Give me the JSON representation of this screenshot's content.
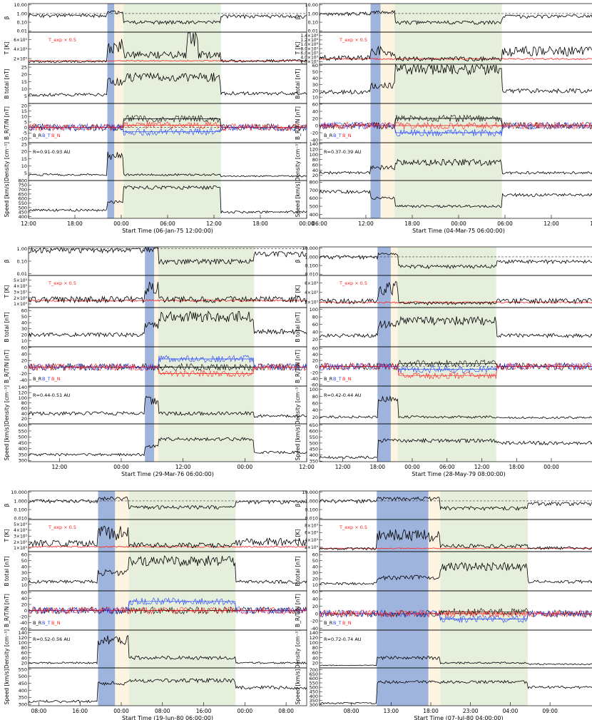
{
  "colors": {
    "sheath_blue": "#9fb4dd",
    "cream": "#fdf5e2",
    "mc_green": "#e6efdc",
    "br_black": "#000000",
    "bt_blue": "#1f3fff",
    "bn_red": "#ff1f1f",
    "texp_red": "#ff1f1f",
    "dash": "#333333"
  },
  "panel_labels": {
    "beta": "β",
    "temp": "T [K]",
    "btotal": "B total [nT]",
    "brtn": "B_R/T/N [nT]",
    "density": "Density [cm⁻³]",
    "speed": "Speed [km/s]"
  },
  "texp_label": "T_exp × 0.5",
  "legend": {
    "br": "B_R",
    "bt": "B_T",
    "bn": "B_N"
  },
  "chart_data": [
    {
      "type": "line",
      "start_label": "Start Time (06-Jan-75 12:00:00)",
      "xlim_hours": [
        0,
        36
      ],
      "xticks": [
        {
          "h": 0,
          "label": "12:00"
        },
        {
          "h": 6,
          "label": "18:00"
        },
        {
          "h": 12,
          "label": "00:00"
        },
        {
          "h": 18,
          "label": "06:00"
        },
        {
          "h": 24,
          "label": "12:00"
        },
        {
          "h": 30,
          "label": "18:00"
        },
        {
          "h": 36,
          "label": "00:00"
        }
      ],
      "radius_label": "R=0.91-0.93 AU",
      "regions_hours": {
        "sheath": [
          10.2,
          11.1
        ],
        "cream": [
          11.1,
          12.3
        ],
        "cloud": [
          12.3,
          24.9
        ]
      },
      "beta": {
        "ticks": [
          "10.00",
          "1.00",
          "0.10",
          "0.01"
        ],
        "pre": 0.6,
        "sheath": 1.5,
        "cloud": 0.1,
        "post": 0.5
      },
      "temp": {
        "ticks": [
          "2×10⁵",
          "4×10⁵",
          "6×10⁵"
        ],
        "max": 7.5,
        "pre": 0.6,
        "sheath": 4.2,
        "cloud": 2.2,
        "post": 0.8,
        "texp": 0.8,
        "spikes": [
          [
            21.2,
            6.8
          ]
        ]
      },
      "btotal": {
        "ticks": [
          "5",
          "10",
          "15",
          "20",
          "25"
        ],
        "min": 0,
        "max": 27,
        "pre": 6,
        "sheath": 15,
        "cloud": 18,
        "post": 7
      },
      "brtn": {
        "ticks": [
          "-10",
          "-5",
          "0",
          "5",
          "10",
          "15",
          "20"
        ],
        "min": -14,
        "max": 22,
        "br": 8,
        "bt": -4,
        "bn": 2
      },
      "density": {
        "ticks": [
          "5",
          "10",
          "15",
          "20",
          "25"
        ],
        "min": 0,
        "max": 26,
        "pre": 4,
        "sheath": 17,
        "cloud": 4,
        "post": 3
      },
      "speed": {
        "ticks": [
          "400",
          "450",
          "500",
          "550",
          "600",
          "650",
          "700",
          "750",
          "800"
        ],
        "min": 380,
        "max": 800,
        "pre": 470,
        "sheath": 560,
        "cloud": 720,
        "post": 450
      }
    },
    {
      "type": "line",
      "start_label": "Start Time (04-Mar-75 06:00:00)",
      "xlim_hours": [
        0,
        36
      ],
      "xticks": [
        {
          "h": 0,
          "label": "06:00"
        },
        {
          "h": 6,
          "label": "12:00"
        },
        {
          "h": 12,
          "label": "18:00"
        },
        {
          "h": 18,
          "label": "00:00"
        },
        {
          "h": 24,
          "label": "06:00"
        },
        {
          "h": 30,
          "label": "12:00"
        },
        {
          "h": 36,
          "label": "18:00"
        }
      ],
      "radius_label": "R=0.37-0.39 AU",
      "regions_hours": {
        "sheath": [
          6.6,
          7.9
        ],
        "cream": [
          7.9,
          9.7
        ],
        "cloud": [
          9.7,
          23.6
        ]
      },
      "beta": {
        "ticks": [
          "10.00",
          "1.00",
          "0.10",
          "0.01"
        ],
        "pre": 1.0,
        "sheath": 1.5,
        "cloud": 0.1,
        "post": 0.5
      },
      "temp": {
        "ticks": [
          "2.0×10⁵",
          "4.0×10⁵",
          "6.0×10⁵",
          "8.0×10⁵",
          "1.0×10⁶",
          "1.2×10⁶",
          "1.4×10⁶"
        ],
        "max": 15,
        "pre": 3,
        "sheath": 6,
        "cloud": 2.5,
        "post": 6,
        "texp": 2.5,
        "spikes": []
      },
      "btotal": {
        "ticks": [
          "10",
          "20",
          "30",
          "40",
          "50",
          "60"
        ],
        "min": 0,
        "max": 62,
        "pre": 18,
        "sheath": 28,
        "cloud": 55,
        "post": 20
      },
      "brtn": {
        "ticks": [
          "-40",
          "-20",
          "0",
          "20",
          "40",
          "60"
        ],
        "min": -48,
        "max": 62,
        "br": 20,
        "bt": -20,
        "bn": 0
      },
      "density": {
        "ticks": [
          "20",
          "40",
          "60",
          "80",
          "100",
          "120",
          "140"
        ],
        "min": 0,
        "max": 145,
        "pre": 30,
        "sheath": 50,
        "cloud": 70,
        "post": 30
      },
      "speed": {
        "ticks": [
          "400",
          "500",
          "600",
          "700",
          "800"
        ],
        "min": 350,
        "max": 820,
        "pre": 680,
        "sheath": 600,
        "cloud": 500,
        "post": 640
      }
    },
    {
      "type": "line",
      "start_label": "Start Time (29-Mar-76 06:00:00)",
      "xlim_hours": [
        0,
        54
      ],
      "xticks": [
        {
          "h": 6,
          "label": "12:00"
        },
        {
          "h": 18,
          "label": "00:00"
        },
        {
          "h": 30,
          "label": "12:00"
        },
        {
          "h": 42,
          "label": "00:00"
        },
        {
          "h": 54,
          "label": "12:00"
        }
      ],
      "radius_label": "R=0.44-0.51 AU",
      "regions_hours": {
        "sheath": [
          22.6,
          24.4
        ],
        "cream": [
          24.4,
          25.2
        ],
        "cloud": [
          25.2,
          43.8
        ]
      },
      "beta": {
        "ticks": [
          "1.00",
          "0.10",
          "0.01"
        ],
        "pre": 0.8,
        "sheath": 1.0,
        "cloud": 0.1,
        "post": 0.4
      },
      "temp": {
        "ticks": [
          "1×10⁵",
          "2×10⁵",
          "3×10⁵",
          "4×10⁵",
          "5×10⁵"
        ],
        "max": 6,
        "pre": 1.5,
        "sheath": 3.5,
        "cloud": 1.5,
        "post": 1.5,
        "texp": 1.3,
        "spikes": []
      },
      "btotal": {
        "ticks": [
          "10",
          "20",
          "30",
          "40",
          "50",
          "60"
        ],
        "min": 0,
        "max": 65,
        "pre": 20,
        "sheath": 35,
        "cloud": 50,
        "post": 25
      },
      "brtn": {
        "ticks": [
          "-40",
          "-20",
          "0",
          "20",
          "40",
          "60"
        ],
        "min": -58,
        "max": 62,
        "br": 0,
        "bt": 25,
        "bn": -20
      },
      "density": {
        "ticks": [
          "20",
          "40",
          "60",
          "80",
          "100",
          "120",
          "140"
        ],
        "min": 0,
        "max": 145,
        "pre": 40,
        "sheath": 90,
        "cloud": 40,
        "post": 30
      },
      "speed": {
        "ticks": [
          "300",
          "350",
          "400",
          "450",
          "500",
          "550",
          "600"
        ],
        "min": 290,
        "max": 610,
        "pre": 350,
        "sheath": 420,
        "cloud": 480,
        "post": 370
      }
    },
    {
      "type": "line",
      "start_label": "Start Time (28-May-79 08:00:00)",
      "xlim_hours": [
        0,
        48
      ],
      "xticks": [
        {
          "h": 4,
          "label": "12:00"
        },
        {
          "h": 10,
          "label": "18:00"
        },
        {
          "h": 16,
          "label": "00:00"
        },
        {
          "h": 22,
          "label": "06:00"
        },
        {
          "h": 28,
          "label": "12:00"
        },
        {
          "h": 34,
          "label": "18:00"
        },
        {
          "h": 40,
          "label": "00:00"
        }
      ],
      "radius_label": "R=0.42-0.44 AU",
      "regions_hours": {
        "sheath": [
          10.0,
          12.3
        ],
        "cream": [
          12.3,
          13.5
        ],
        "cloud": [
          13.5,
          30.5
        ]
      },
      "beta": {
        "ticks": [
          "10.000",
          "1.000",
          "0.100",
          "0.010"
        ],
        "pre": 1.0,
        "sheath": 2.0,
        "cloud": 0.08,
        "post": 0.3
      },
      "temp": {
        "ticks": [
          "2×10⁵",
          "4×10⁵",
          "6×10⁵"
        ],
        "max": 7.5,
        "pre": 1.5,
        "sheath": 4.5,
        "cloud": 1.0,
        "post": 1.5,
        "texp": 1.2,
        "spikes": []
      },
      "btotal": {
        "ticks": [
          "20",
          "40",
          "60",
          "80",
          "100"
        ],
        "min": 0,
        "max": 105,
        "pre": 30,
        "sheath": 60,
        "cloud": 70,
        "post": 30
      },
      "brtn": {
        "ticks": [
          "-60",
          "-40",
          "-20",
          "0",
          "20",
          "40",
          "60"
        ],
        "min": -65,
        "max": 65,
        "br": 10,
        "bt": -10,
        "bn": -30
      },
      "density": {
        "ticks": [
          "20",
          "40",
          "60",
          "80",
          "100"
        ],
        "min": 0,
        "max": 110,
        "pre": 20,
        "sheath": 70,
        "cloud": 20,
        "post": 18
      },
      "speed": {
        "ticks": [
          "350",
          "400",
          "450",
          "500",
          "550",
          "600",
          "650"
        ],
        "min": 345,
        "max": 660,
        "pre": 380,
        "sheath": 520,
        "cloud": 520,
        "post": 500
      }
    },
    {
      "type": "line",
      "start_label": "Start Time (19-Jun-80 06:00:00)",
      "xlim_hours": [
        0,
        54
      ],
      "xticks": [
        {
          "h": 2,
          "label": "08:00"
        },
        {
          "h": 10,
          "label": "16:00"
        },
        {
          "h": 18,
          "label": "00:00"
        },
        {
          "h": 26,
          "label": "08:00"
        },
        {
          "h": 34,
          "label": "16:00"
        },
        {
          "h": 42,
          "label": "00:00"
        },
        {
          "h": 50,
          "label": "08:00"
        }
      ],
      "radius_label": "R=0.52-0.56 AU",
      "regions_hours": {
        "sheath": [
          13.5,
          16.8
        ],
        "cream": [
          16.8,
          19.5
        ],
        "cloud": [
          19.5,
          40.2
        ]
      },
      "beta": {
        "ticks": [
          "10.000",
          "1.000",
          "0.100",
          "0.010"
        ],
        "pre": 1.0,
        "sheath": 2.0,
        "cloud": 0.2,
        "post": 0.8
      },
      "temp": {
        "ticks": [
          "1×10⁵",
          "2×10⁵",
          "3×10⁵",
          "4×10⁵",
          "5×10⁵"
        ],
        "max": 6,
        "pre": 1.5,
        "sheath": 3.5,
        "cloud": 1.2,
        "post": 1.8,
        "texp": 0.9,
        "spikes": []
      },
      "btotal": {
        "ticks": [
          "10",
          "20",
          "30",
          "40",
          "50",
          "60"
        ],
        "min": 0,
        "max": 65,
        "pre": 15,
        "sheath": 30,
        "cloud": 50,
        "post": 15
      },
      "brtn": {
        "ticks": [
          "-60",
          "-40",
          "-20",
          "0",
          "20",
          "40",
          "60"
        ],
        "min": -65,
        "max": 65,
        "br": 0,
        "bt": 30,
        "bn": 0
      },
      "density": {
        "ticks": [
          "20",
          "40",
          "60",
          "80",
          "100",
          "120",
          "140"
        ],
        "min": 0,
        "max": 150,
        "pre": 20,
        "sheath": 110,
        "cloud": 40,
        "post": 20
      },
      "speed": {
        "ticks": [
          "300",
          "350",
          "400",
          "450",
          "500",
          "550"
        ],
        "min": 290,
        "max": 560,
        "pre": 320,
        "sheath": 450,
        "cloud": 470,
        "post": 420
      }
    },
    {
      "type": "line",
      "start_label": "Start Time (07-Jul-80 04:00:00)",
      "xlim_hours": [
        0,
        35
      ],
      "xticks": [
        {
          "h": 4,
          "label": "08:00"
        },
        {
          "h": 9,
          "label": "13:00"
        },
        {
          "h": 14,
          "label": "18:00"
        },
        {
          "h": 19,
          "label": "23:00"
        },
        {
          "h": 24,
          "label": "04:00"
        },
        {
          "h": 29,
          "label": "09:00"
        }
      ],
      "radius_label": "R=0.72-0.74 AU",
      "regions_hours": {
        "sheath": [
          7.2,
          13.7
        ],
        "cream": [
          13.7,
          15.2
        ],
        "cloud": [
          15.2,
          26.2
        ]
      },
      "beta": {
        "ticks": [
          "10.000",
          "1.000",
          "0.100",
          "0.010"
        ],
        "pre": 1.0,
        "sheath": 2.0,
        "cloud": 0.15,
        "post": 0.5
      },
      "temp": {
        "ticks": [
          "2×10⁵",
          "4×10⁵",
          "6×10⁵",
          "8×10⁵"
        ],
        "max": 9,
        "pre": 0.8,
        "sheath": 4.5,
        "cloud": 1.5,
        "post": 1.0,
        "texp": 0.9,
        "spikes": []
      },
      "btotal": {
        "ticks": [
          "10",
          "20",
          "30",
          "40",
          "50",
          "60"
        ],
        "min": 0,
        "max": 65,
        "pre": 12,
        "sheath": 22,
        "cloud": 40,
        "post": 15
      },
      "brtn": {
        "ticks": [
          "-40",
          "-20",
          "0",
          "20",
          "40",
          "60"
        ],
        "min": -45,
        "max": 62,
        "br": 5,
        "bt": -15,
        "bn": 0
      },
      "density": {
        "ticks": [
          "20",
          "40",
          "60",
          "80",
          "100",
          "120",
          "140"
        ],
        "min": 0,
        "max": 150,
        "pre": 10,
        "sheath": 40,
        "cloud": 20,
        "post": 15
      },
      "speed": {
        "ticks": [
          "300",
          "350",
          "400",
          "450",
          "500",
          "550",
          "600",
          "650",
          "700"
        ],
        "min": 290,
        "max": 720,
        "pre": 320,
        "sheath": 560,
        "cloud": 560,
        "post": 500
      }
    }
  ]
}
